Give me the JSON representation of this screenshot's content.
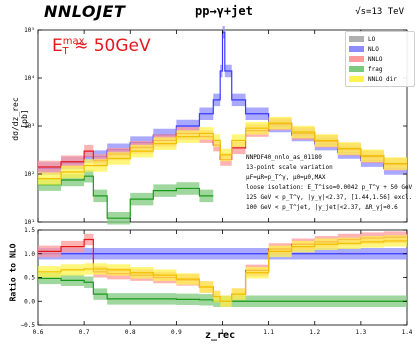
{
  "header": {
    "brand": "NNLOJET",
    "process": "pp→γ+jet",
    "energy": "√s=13 TeV"
  },
  "annotation": {
    "lhs_base": "E",
    "lhs_sup": "max",
    "lhs_sub": "T",
    "rhs": "≈ 50GeV"
  },
  "info_lines": [
    "NNPDF40_nnlo_as_01180",
    "13-point scale variation",
    "μF=μR=p_T^γ, μ0=μ0,MAX",
    "loose isolation: E_T^iso=0.0042 p_T^γ + 50 GeV",
    "125 GeV < p_T^γ, |y_γ|<2.37, [1.44,1.56] excl.",
    "100 GeV < p_T^jet, |y_jet|<2.37, ΔR_γj=0.6"
  ],
  "legend": [
    {
      "label": "LO",
      "color": "#b0b0b0"
    },
    {
      "label": "NLO",
      "color": "#8c8cff"
    },
    {
      "label": "NNLO",
      "color": "#ff9a9a"
    },
    {
      "label": "frag",
      "color": "#7fc97f"
    },
    {
      "label": "NNLO dir",
      "color": "#fff44f"
    }
  ],
  "axes": {
    "ylabel_top": "dσ/dz_rec [pb]",
    "ylabel_bottom": "Ratio to NLO",
    "xlabel": "z_rec",
    "x_ticks": [
      "0.6",
      "0.7",
      "0.8",
      "0.9",
      "1",
      "1.1",
      "1.2",
      "1.3",
      "1.4"
    ],
    "y_ticks_top": [
      "10¹",
      "10²",
      "10³",
      "10⁴",
      "10⁵"
    ],
    "y_ticks_bottom": [
      "−0.5",
      "0.0",
      "0.5",
      "1.0",
      "1.5"
    ]
  },
  "chart_data": [
    {
      "type": "line",
      "panel": "main",
      "yscale": "log",
      "xlim": [
        0.6,
        1.4
      ],
      "ylim": [
        10,
        100000
      ],
      "series": [
        {
          "name": "NLO",
          "color": "#3b3bff",
          "band": "#8c8cff",
          "x": [
            0.6,
            0.65,
            0.7,
            0.75,
            0.8,
            0.85,
            0.9,
            0.95,
            0.98,
            0.995,
            1.0,
            1.005,
            1.02,
            1.05,
            1.1,
            1.15,
            1.2,
            1.25,
            1.3,
            1.35,
            1.4
          ],
          "y": [
            130,
            170,
            230,
            320,
            450,
            650,
            1000,
            1800,
            3500,
            14000,
            90000,
            14000,
            3500,
            1800,
            1000,
            650,
            420,
            280,
            190,
            130,
            95
          ]
        },
        {
          "name": "NNLO",
          "color": "#e31a1c",
          "band": "#ff9a9a",
          "x": [
            0.6,
            0.65,
            0.7,
            0.72,
            0.75,
            0.8,
            0.85,
            0.9,
            0.95,
            0.98,
            0.995,
            1.005,
            1.02,
            1.05,
            1.1,
            1.15,
            1.2,
            1.25,
            1.3,
            1.35,
            1.4
          ],
          "y": [
            140,
            180,
            300,
            190,
            260,
            360,
            500,
            700,
            600,
            400,
            200,
            200,
            350,
            800,
            1100,
            700,
            480,
            330,
            230,
            160,
            120
          ]
        },
        {
          "name": "frag",
          "color": "#1a9a1a",
          "band": "#7fc97f",
          "x": [
            0.6,
            0.65,
            0.7,
            0.72,
            0.75,
            0.8,
            0.85,
            0.9,
            0.95,
            0.98
          ],
          "y": [
            60,
            75,
            90,
            35,
            12,
            30,
            45,
            50,
            35,
            12
          ]
        },
        {
          "name": "NNLO dir",
          "color": "#f0c000",
          "band": "#fff44f",
          "x": [
            0.6,
            0.65,
            0.7,
            0.75,
            0.8,
            0.85,
            0.9,
            0.95,
            0.98,
            0.995,
            1.005,
            1.02,
            1.05,
            1.1,
            1.15,
            1.2,
            1.25,
            1.3,
            1.35,
            1.4
          ],
          "y": [
            80,
            110,
            150,
            210,
            300,
            430,
            600,
            700,
            500,
            250,
            250,
            500,
            900,
            1150,
            750,
            500,
            340,
            240,
            165,
            125
          ]
        }
      ]
    },
    {
      "type": "line",
      "panel": "ratio",
      "xlim": [
        0.6,
        1.4
      ],
      "ylim": [
        -0.5,
        1.5
      ],
      "series": [
        {
          "name": "NLO",
          "color": "#3b3bff",
          "band": "#8c8cff",
          "x": [
            0.6,
            1.4
          ],
          "y": [
            1.0,
            1.0
          ]
        },
        {
          "name": "NNLO",
          "color": "#e31a1c",
          "band": "#ff9a9a",
          "x": [
            0.6,
            0.65,
            0.7,
            0.72,
            0.75,
            0.8,
            0.85,
            0.9,
            0.95,
            0.98,
            0.995,
            1.005,
            1.02,
            1.05,
            1.1,
            1.15,
            1.2,
            1.25,
            1.3,
            1.35,
            1.4
          ],
          "y": [
            1.05,
            1.15,
            1.3,
            0.62,
            0.58,
            0.55,
            0.5,
            0.45,
            0.3,
            0.1,
            0.0,
            0.0,
            0.15,
            0.65,
            1.1,
            1.2,
            1.25,
            1.3,
            1.33,
            1.35,
            1.38
          ]
        },
        {
          "name": "frag",
          "color": "#1a9a1a",
          "band": "#7fc97f",
          "x": [
            0.6,
            0.65,
            0.7,
            0.72,
            0.75,
            0.8,
            0.85,
            0.9,
            0.95,
            0.98,
            1.0,
            1.02,
            1.1,
            1.4
          ],
          "y": [
            0.48,
            0.44,
            0.4,
            0.15,
            0.05,
            0.05,
            0.05,
            0.04,
            0.03,
            0.0,
            0.0,
            0.0,
            0.0,
            0.0
          ]
        },
        {
          "name": "NNLO dir",
          "color": "#f0c000",
          "band": "#fff44f",
          "x": [
            0.6,
            0.65,
            0.7,
            0.75,
            0.8,
            0.85,
            0.9,
            0.95,
            0.98,
            0.995,
            1.005,
            1.02,
            1.05,
            1.1,
            1.15,
            1.2,
            1.25,
            1.3,
            1.35,
            1.4
          ],
          "y": [
            0.62,
            0.66,
            0.68,
            0.66,
            0.6,
            0.55,
            0.47,
            0.3,
            0.1,
            0.0,
            0.0,
            0.15,
            0.6,
            1.05,
            1.15,
            1.2,
            1.22,
            1.25,
            1.27,
            1.3
          ]
        }
      ]
    }
  ]
}
